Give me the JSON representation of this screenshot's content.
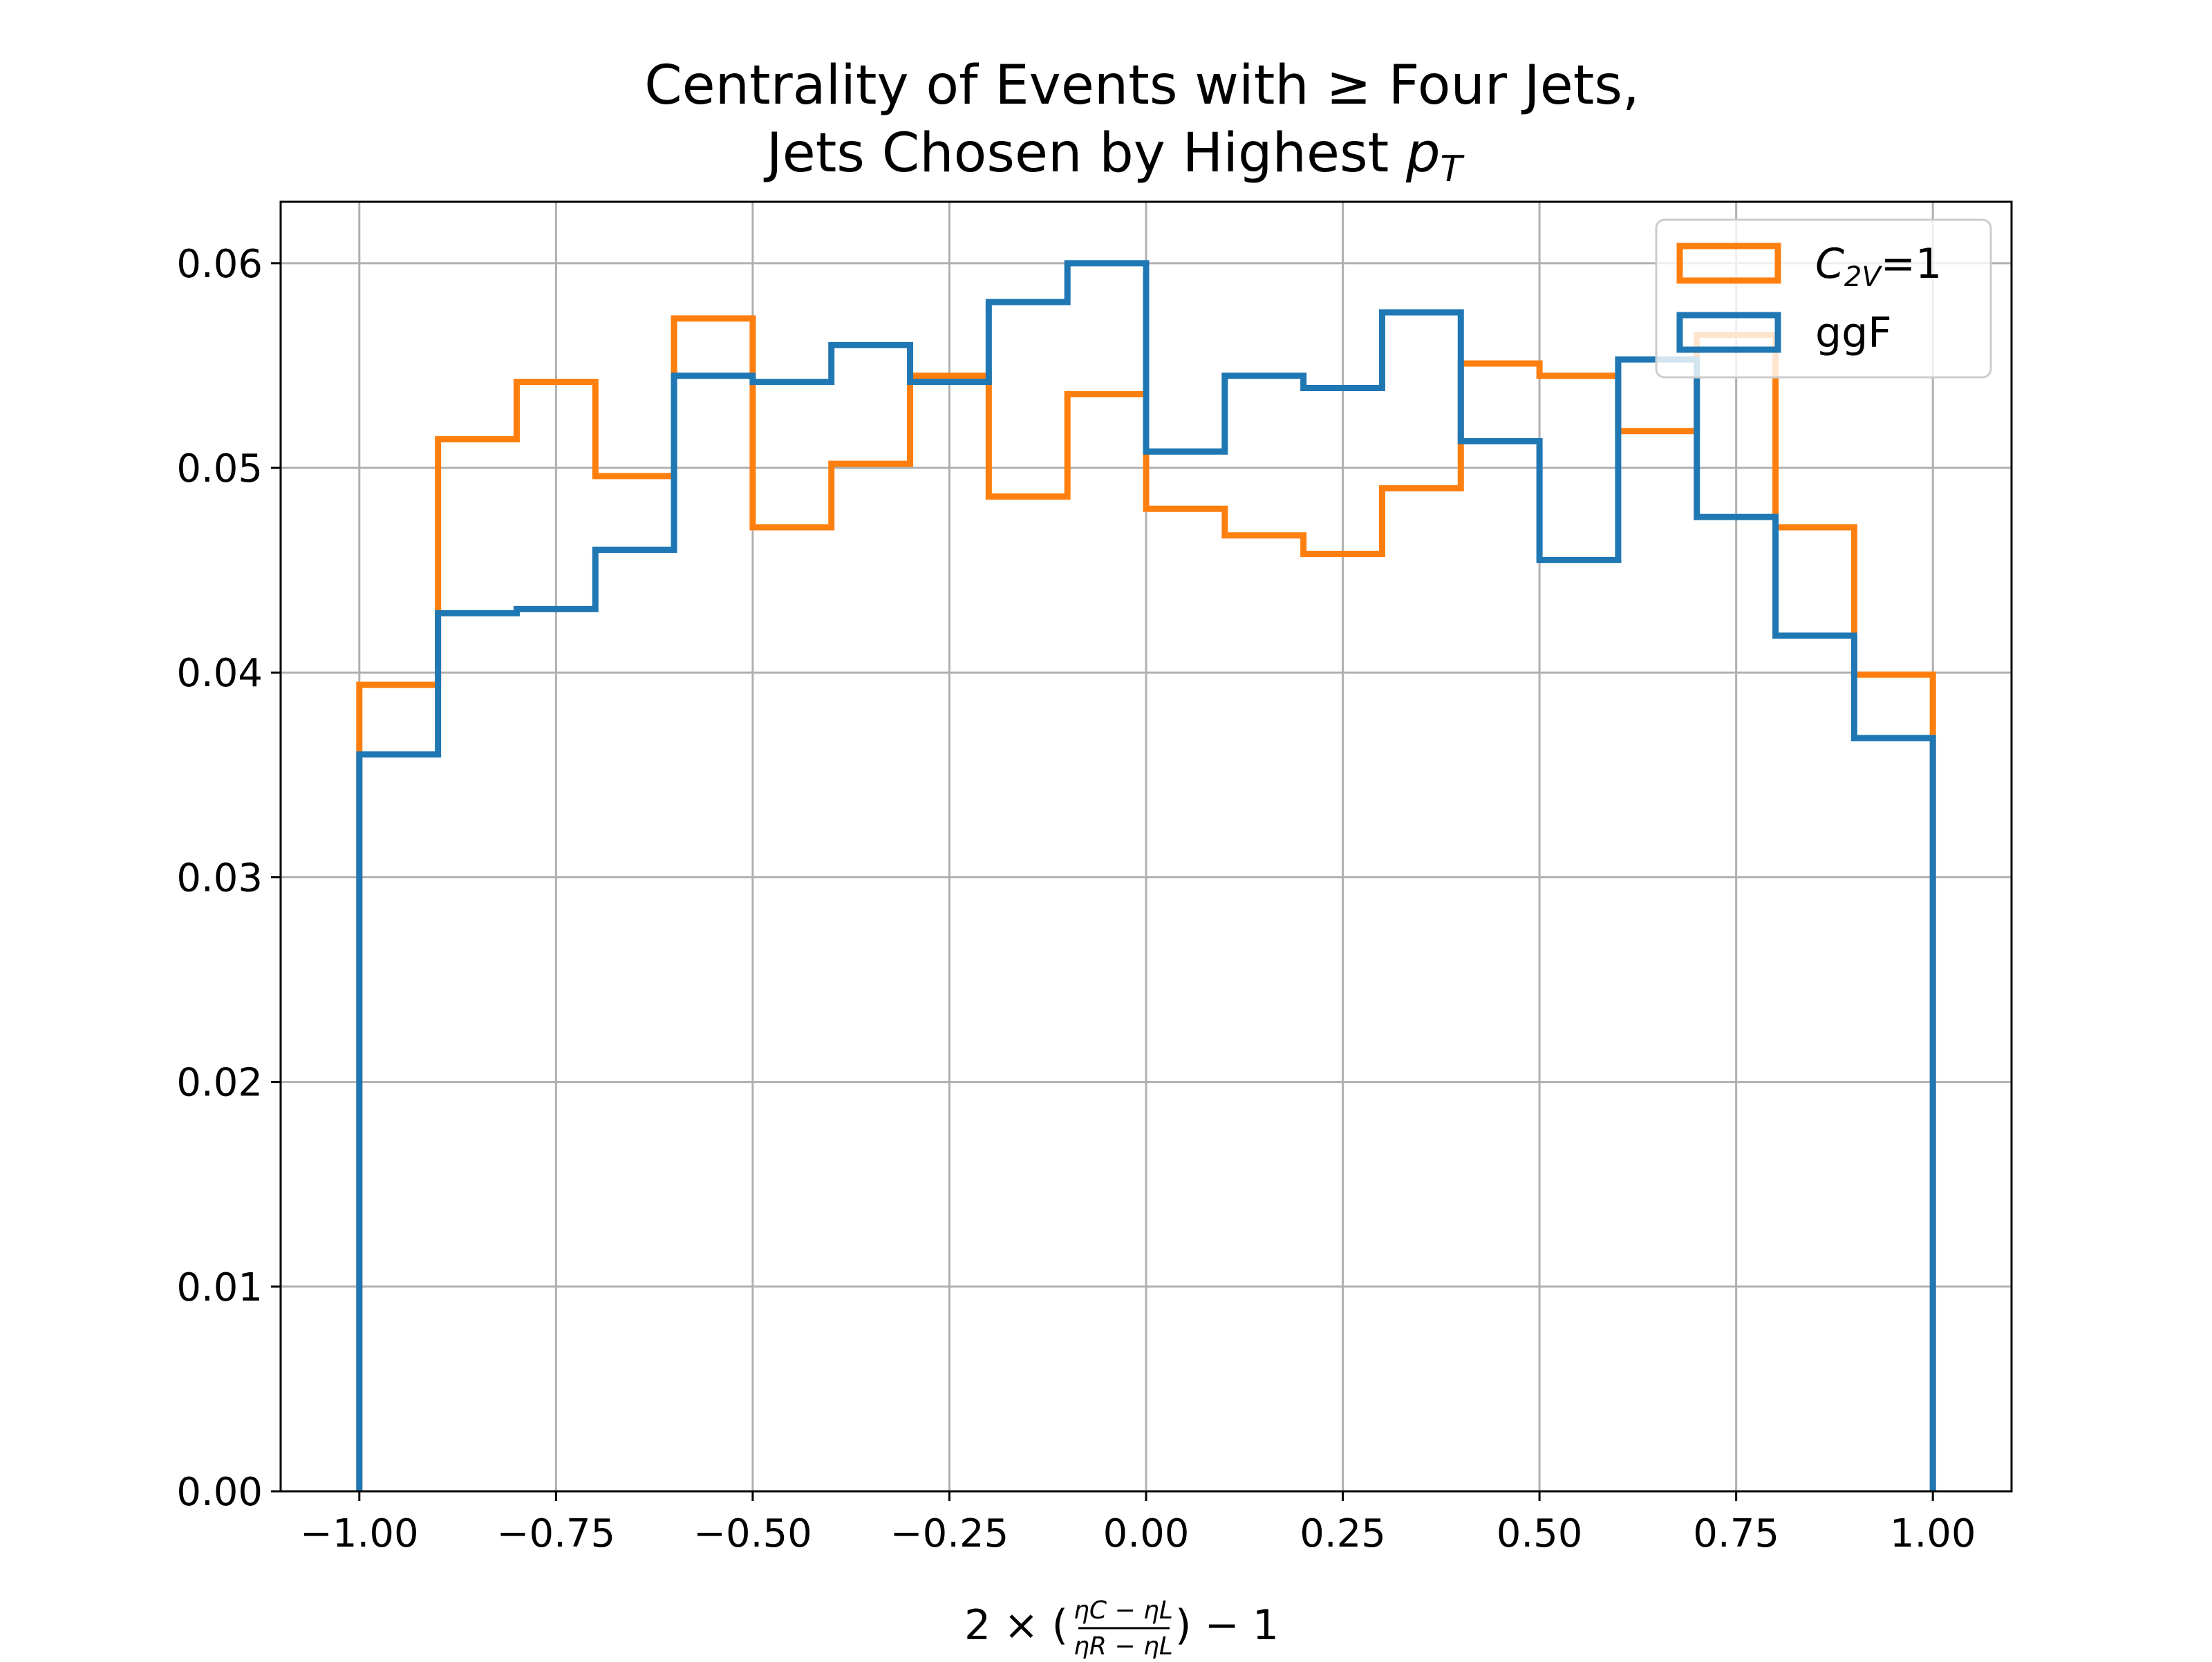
{
  "chart_data": {
    "type": "histogram",
    "title_lines": [
      "Centrality of Events with  ≥  Four Jets,",
      "Jets Chosen by Highest "
    ],
    "title_math": {
      "base": "p",
      "sub": "T"
    },
    "xlabel": {
      "prefix": "2 × (",
      "numerator": "ηC − ηL",
      "denominator": "ηR − ηL",
      "suffix": ") − 1"
    },
    "ylabel": "",
    "xlim": [
      -1.1,
      1.1
    ],
    "ylim": [
      0,
      0.063
    ],
    "grid": true,
    "legend_position": "top-right",
    "bin_edges": [
      -1.0,
      -0.9,
      -0.8,
      -0.7,
      -0.6,
      -0.5,
      -0.4,
      -0.3,
      -0.2,
      -0.1,
      0.0,
      0.1,
      0.2,
      0.3,
      0.4,
      0.5,
      0.6,
      0.7,
      0.8,
      0.9,
      1.0
    ],
    "xticks": [
      "−1.00",
      "−0.75",
      "−0.50",
      "−0.25",
      "0.00",
      "0.25",
      "0.50",
      "0.75",
      "1.00"
    ],
    "xtick_values": [
      -1.0,
      -0.75,
      -0.5,
      -0.25,
      0.0,
      0.25,
      0.5,
      0.75,
      1.0
    ],
    "yticks": [
      "0.00",
      "0.01",
      "0.02",
      "0.03",
      "0.04",
      "0.05",
      "0.06"
    ],
    "ytick_values": [
      0.0,
      0.01,
      0.02,
      0.03,
      0.04,
      0.05,
      0.06
    ],
    "series": [
      {
        "name": "C2V=1",
        "legend_base": "C",
        "legend_sub": "2V",
        "legend_suffix": "=1",
        "color": "#ff7f0e",
        "values": [
          0.0394,
          0.0514,
          0.0542,
          0.0496,
          0.0573,
          0.0471,
          0.0502,
          0.0545,
          0.0486,
          0.0536,
          0.048,
          0.0467,
          0.0458,
          0.049,
          0.0551,
          0.0545,
          0.0518,
          0.0565,
          0.0471,
          0.0399
        ]
      },
      {
        "name": "ggF",
        "color": "#1f77b4",
        "values": [
          0.036,
          0.0429,
          0.0431,
          0.046,
          0.0545,
          0.0542,
          0.056,
          0.0542,
          0.0581,
          0.06,
          0.0508,
          0.0545,
          0.0539,
          0.0576,
          0.0513,
          0.0455,
          0.0553,
          0.0476,
          0.0418,
          0.0368
        ]
      }
    ]
  }
}
